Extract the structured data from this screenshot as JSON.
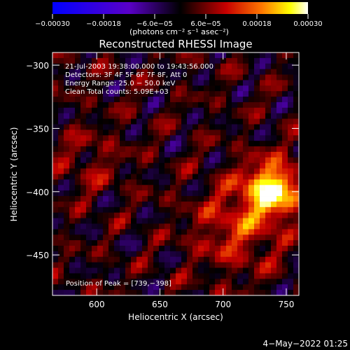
{
  "chart_data": {
    "type": "heatmap",
    "title": "Reconstructed RHESSI Image",
    "xlabel": "Heliocentric X (arcsec)",
    "ylabel": "Heliocentric Y (arcsec)",
    "xlim": [
      565,
      760
    ],
    "ylim": [
      -482,
      -290
    ],
    "x_ticks": [
      {
        "value": 600,
        "label": "600"
      },
      {
        "value": 650,
        "label": "650"
      },
      {
        "value": 700,
        "label": "700"
      },
      {
        "value": 750,
        "label": "750"
      }
    ],
    "y_ticks": [
      {
        "value": -300,
        "label": "−300"
      },
      {
        "value": -350,
        "label": "−350"
      },
      {
        "value": -400,
        "label": "−400"
      },
      {
        "value": -450,
        "label": "−450"
      }
    ],
    "colorbar": {
      "range": [
        -0.0003,
        0.0003
      ],
      "units_label": "(photons cm⁻² s⁻¹ asec⁻²)",
      "ticks": [
        {
          "value": -0.0003,
          "label": "−0.00030"
        },
        {
          "value": -0.00018,
          "label": "−0.00018"
        },
        {
          "value": -6e-05,
          "label": "−6.0e−05"
        },
        {
          "value": 6e-05,
          "label": "6.0e−05"
        },
        {
          "value": 0.00018,
          "label": "0.00018"
        },
        {
          "value": 0.0003,
          "label": "0.00030"
        }
      ]
    },
    "annotations": [
      "21-Jul-2003 19:38:00.000 to 19:43:56.000",
      "Detectors: 3F 4F 5F 6F 7F 8F, Att 0",
      "Energy Range: 25.0 − 50.0 keV",
      "Clean     Total counts: 5.09E+03"
    ],
    "peak_label": "Position of Peak = [739,−398]",
    "peak": [
      739,
      -398
    ],
    "footer_date": "4−May−2022 01:25",
    "colors": {
      "background": "#000000",
      "axis": "#ffffff",
      "colormap": [
        "#0000ff",
        "#5a00c8",
        "#000000",
        "#c80000",
        "#ff7800",
        "#ffff00",
        "#ffffff"
      ]
    },
    "grid": false
  }
}
